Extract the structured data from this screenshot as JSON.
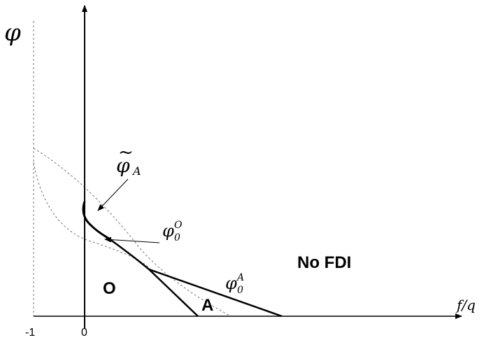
{
  "axes": {
    "y_label": "φ",
    "x_label": "f/q",
    "tick_neg_one": "-1",
    "tick_zero": "0"
  },
  "regions": {
    "o": "O",
    "a": "A",
    "no_fdi": "No FDI"
  },
  "labels": {
    "phi_tilde": {
      "base": "φ",
      "accent": "~",
      "sub": "A"
    },
    "phi_0_o": {
      "base": "φ",
      "sub": "0",
      "sup": "O"
    },
    "phi_0_a": {
      "base": "φ",
      "sub": "0",
      "sup": "A"
    }
  },
  "colors": {
    "axis": "#000000",
    "curve": "#000000",
    "dashed": "#666666"
  }
}
